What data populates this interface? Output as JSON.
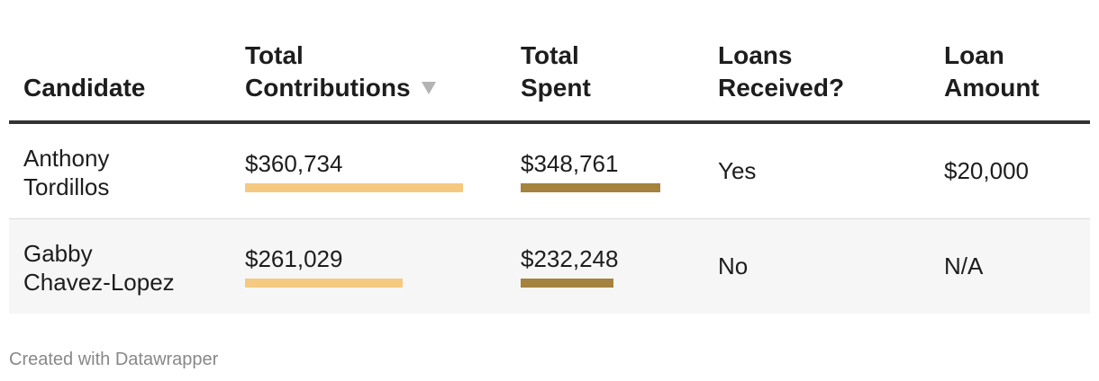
{
  "chart_data": {
    "type": "table",
    "columns": [
      {
        "lines": [
          "Candidate"
        ]
      },
      {
        "lines": [
          "Total",
          "Contributions"
        ],
        "sorted": "descending"
      },
      {
        "lines": [
          "Total",
          "Spent"
        ]
      },
      {
        "lines": [
          "Loans",
          "Received?"
        ]
      },
      {
        "lines": [
          "Loan",
          "Amount"
        ]
      }
    ],
    "rows": [
      {
        "candidate_lines": [
          "Anthony",
          "Tordillos"
        ],
        "total_contributions": "$360,734",
        "total_contributions_value": 360734,
        "total_spent": "$348,761",
        "total_spent_value": 348761,
        "loans_received": "Yes",
        "loan_amount": "$20,000"
      },
      {
        "candidate_lines": [
          "Gabby",
          "Chavez-Lopez"
        ],
        "total_contributions": "$261,029",
        "total_contributions_value": 261029,
        "total_spent": "$232,248",
        "total_spent_value": 232248,
        "loans_received": "No",
        "loan_amount": "N/A"
      }
    ],
    "bar_colors": {
      "total_contributions": "#f5c97f",
      "total_spent": "#a5823d"
    },
    "bar_scale_max": 360734
  },
  "footer": {
    "credit": "Created with Datawrapper"
  }
}
